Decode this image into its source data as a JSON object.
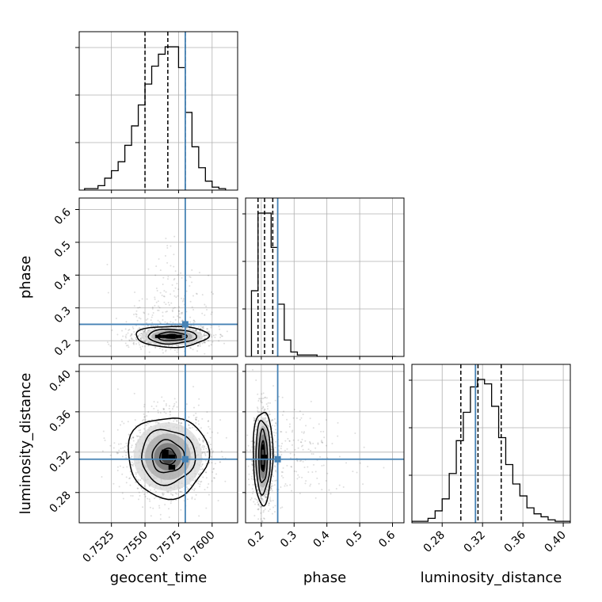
{
  "chart_data": {
    "type": "corner",
    "parameters": [
      "geocent_time",
      "phase",
      "luminosity_distance"
    ],
    "ranges": {
      "geocent_time": [
        0.7501,
        0.7619
      ],
      "phase": [
        0.152,
        0.635
      ],
      "luminosity_distance": [
        0.25,
        0.407
      ]
    },
    "ticks": {
      "geocent_time": [
        "0.7525",
        "0.7550",
        "0.7575",
        "0.7600"
      ],
      "phase": [
        "0.2",
        "0.3",
        "0.4",
        "0.5",
        "0.6"
      ],
      "luminosity_distance": [
        "0.28",
        "0.32",
        "0.36",
        "0.40"
      ]
    },
    "truths": {
      "geocent_time": 0.758,
      "phase": 0.25,
      "luminosity_distance": 0.313
    },
    "quantiles": {
      "geocent_time": [
        0.755,
        0.7567,
        0.758
      ],
      "phase": [
        0.19,
        0.21,
        0.235
      ],
      "luminosity_distance": [
        0.2985,
        0.3155,
        0.3385
      ]
    },
    "histograms": {
      "geocent_time": {
        "bin_edges": [
          0.7505,
          0.751,
          0.7515,
          0.752,
          0.7525,
          0.753,
          0.7535,
          0.754,
          0.7545,
          0.755,
          0.7555,
          0.756,
          0.7565,
          0.757,
          0.7575,
          0.758,
          0.7585,
          0.759,
          0.7595,
          0.76,
          0.7605,
          0.761
        ],
        "counts": [
          1,
          1,
          3,
          8,
          13,
          19,
          30,
          43,
          57,
          71,
          83,
          91,
          96,
          96,
          82,
          52,
          29,
          15,
          6,
          2,
          1
        ]
      },
      "phase": {
        "bin_edges": [
          0.17,
          0.19,
          0.21,
          0.23,
          0.25,
          0.27,
          0.29,
          0.31,
          0.33,
          0.35,
          0.37,
          0.39,
          0.41,
          0.43,
          0.45,
          0.47,
          0.49,
          0.51,
          0.53,
          0.55,
          0.57,
          0.59,
          0.61
        ],
        "counts": [
          44,
          96,
          96,
          73,
          35,
          11,
          3,
          1,
          1,
          1,
          0,
          0,
          0,
          0,
          0,
          0,
          0,
          0,
          0,
          0,
          0,
          0
        ]
      },
      "luminosity_distance": {
        "bin_edges": [
          0.25,
          0.259,
          0.266,
          0.273,
          0.28,
          0.287,
          0.294,
          0.301,
          0.308,
          0.315,
          0.322,
          0.329,
          0.336,
          0.343,
          0.35,
          0.357,
          0.364,
          0.371,
          0.378,
          0.385,
          0.392,
          0.399,
          0.407
        ],
        "counts": [
          1,
          1,
          3,
          8,
          16,
          33,
          55,
          74,
          91,
          96,
          93,
          78,
          57,
          39,
          26,
          18,
          10,
          6,
          4,
          2,
          1,
          1
        ]
      }
    },
    "contours": {
      "phase_vs_geocent_time": {
        "center": [
          0.757,
          0.213
        ],
        "radii": [
          [
            0.0005,
            0.006
          ],
          [
            0.0011,
            0.013
          ],
          [
            0.0018,
            0.022
          ],
          [
            0.0027,
            0.032
          ]
        ],
        "peak_cells": [
          [
            0.7565,
            0.213
          ],
          [
            0.757,
            0.213
          ],
          [
            0.7575,
            0.213
          ],
          [
            0.756,
            0.213
          ]
        ]
      },
      "luminosity_distance_vs_geocent_time": {
        "center": [
          0.7567,
          0.3155
        ],
        "radii": [
          [
            0.0006,
            0.008
          ],
          [
            0.0012,
            0.016
          ],
          [
            0.002,
            0.027
          ],
          [
            0.003,
            0.04
          ]
        ],
        "peak_cells": [
          [
            0.7565,
            0.315
          ],
          [
            0.757,
            0.315
          ],
          [
            0.7565,
            0.32
          ],
          [
            0.757,
            0.305
          ]
        ]
      },
      "luminosity_distance_vs_phase": {
        "center": [
          0.205,
          0.3155
        ],
        "radii": [
          [
            0.006,
            0.015
          ],
          [
            0.013,
            0.026
          ],
          [
            0.022,
            0.036
          ],
          [
            0.03,
            0.046
          ]
        ],
        "peak_cells": [
          [
            0.205,
            0.315
          ],
          [
            0.205,
            0.305
          ],
          [
            0.205,
            0.325
          ],
          [
            0.215,
            0.315
          ]
        ]
      }
    },
    "colors": {
      "truth": "#4682b4",
      "histogram": "#000000",
      "grid": "#b0b0b0",
      "scatter": "#000000"
    },
    "grid": true
  }
}
